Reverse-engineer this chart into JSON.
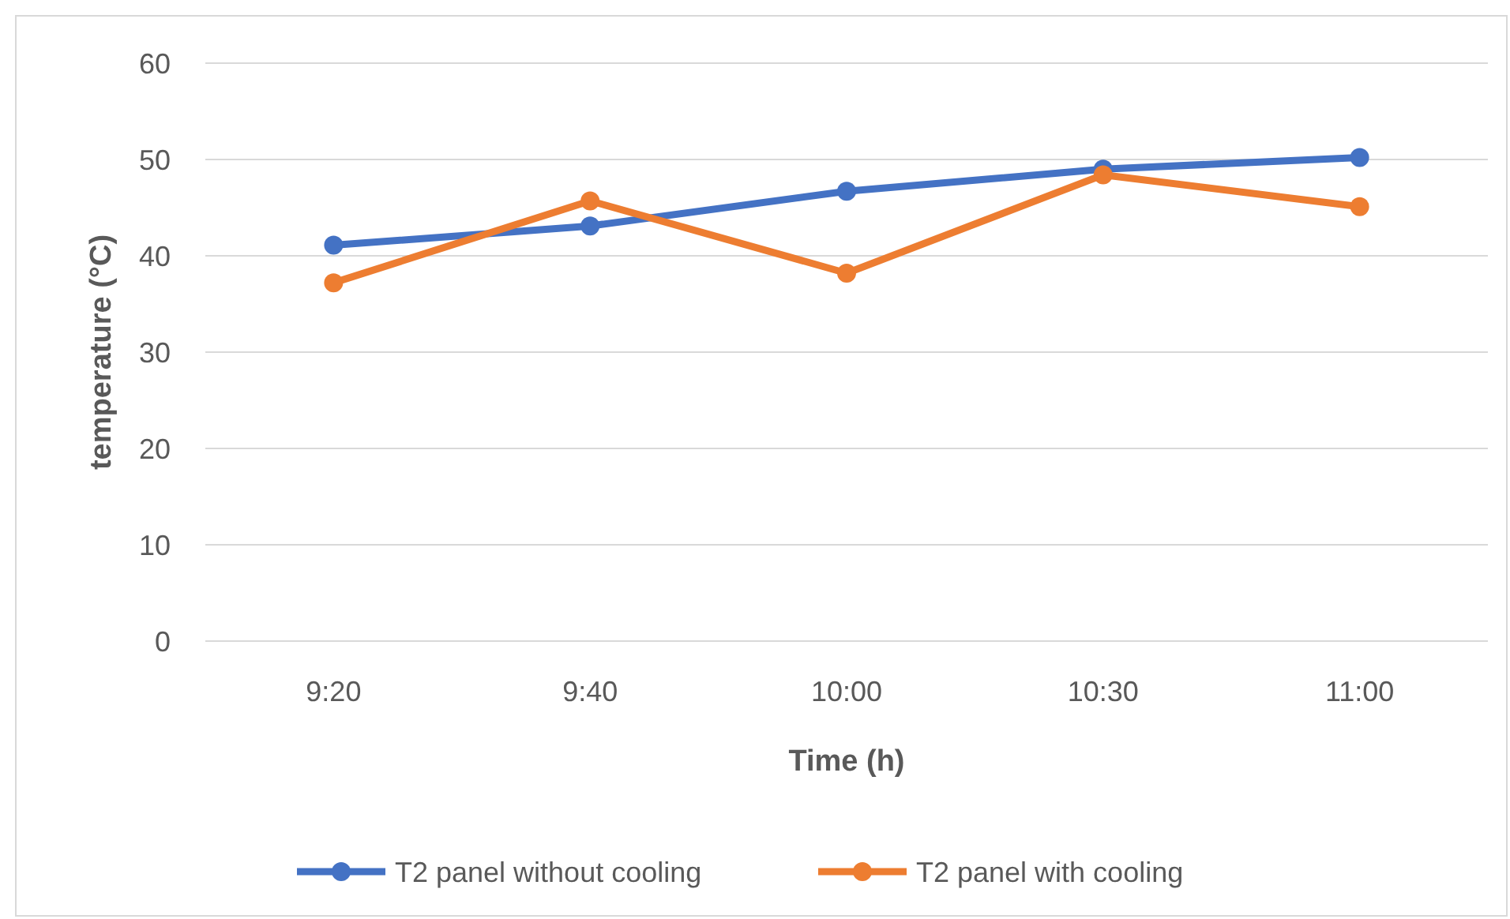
{
  "chart_data": {
    "type": "line",
    "xlabel": "Time (h)",
    "ylabel": "temperature (°C)",
    "categories": [
      "9:20",
      "9:40",
      "10:00",
      "10:30",
      "11:00"
    ],
    "series": [
      {
        "name": "T2 panel without cooling",
        "color": "#4472c4",
        "values": [
          41.1,
          43.1,
          46.7,
          49.0,
          50.2
        ]
      },
      {
        "name": "T2 panel with cooling",
        "color": "#ed7d31",
        "values": [
          37.2,
          45.7,
          38.2,
          48.4,
          45.1
        ]
      }
    ],
    "ylim": [
      0,
      60
    ],
    "yticks": [
      0,
      10,
      20,
      30,
      40,
      50,
      60
    ],
    "grid": "y",
    "legend": "bottom",
    "marker": "circle",
    "line_style": "solid"
  }
}
